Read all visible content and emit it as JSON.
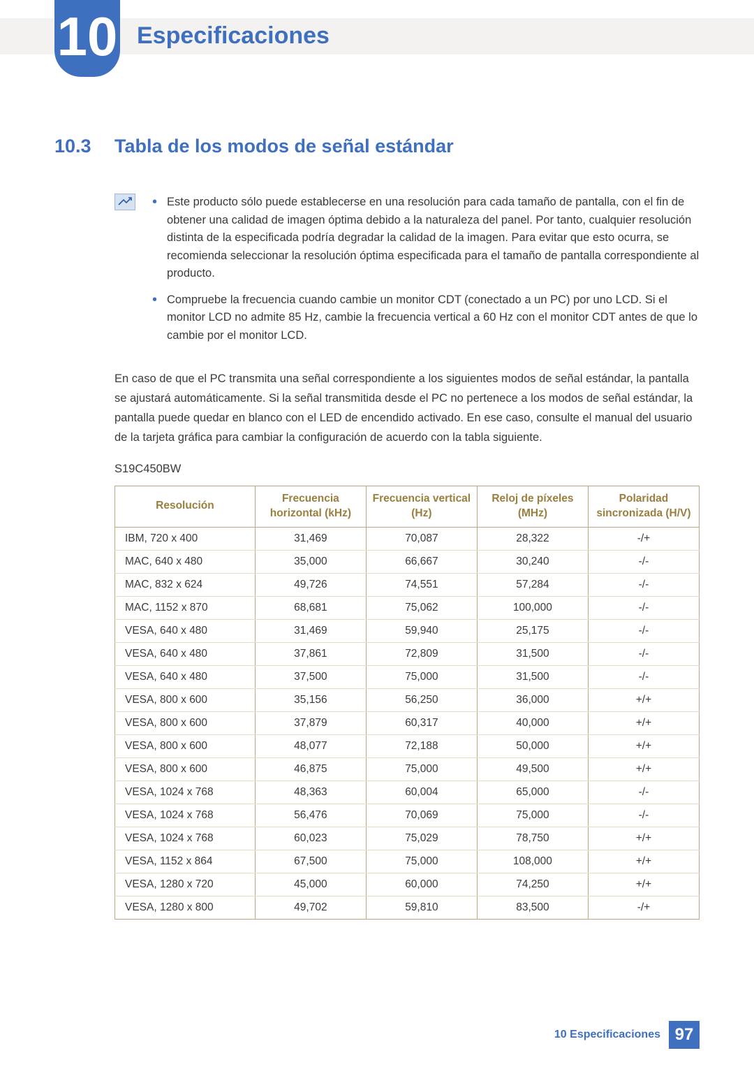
{
  "header": {
    "chapter_number": "10",
    "chapter_title": "Especificaciones"
  },
  "section": {
    "number": "10.3",
    "title": "Tabla de los modos de señal estándar"
  },
  "notes": [
    "Este producto sólo puede establecerse en una resolución para cada tamaño de pantalla, con el fin de obtener una calidad de imagen óptima debido a la naturaleza del panel. Por tanto, cualquier resolución distinta de la especificada podría degradar la calidad de la imagen. Para evitar que esto ocurra, se recomienda seleccionar la resolución óptima especificada para el tamaño de pantalla correspondiente al producto.",
    "Compruebe la frecuencia cuando cambie un monitor CDT (conectado a un PC) por uno LCD. Si el monitor LCD no admite 85 Hz, cambie la frecuencia vertical a 60 Hz con el monitor CDT antes de que lo cambie por el monitor LCD."
  ],
  "body_paragraph": "En caso de que el PC transmita una señal correspondiente a los siguientes modos de señal estándar, la pantalla se ajustará automáticamente. Si la señal transmitida desde el PC no pertenece a los modos de señal estándar, la pantalla puede quedar en blanco con el LED de encendido activado. En ese caso, consulte el manual del usuario de la tarjeta gráfica para cambiar la configuración de acuerdo con la tabla siguiente.",
  "model": "S19C450BW",
  "table": {
    "columns": [
      "Resolución",
      "Frecuencia horizontal (kHz)",
      "Frecuencia vertical (Hz)",
      "Reloj de píxeles (MHz)",
      "Polaridad sincronizada (H/V)"
    ],
    "column_widths_pct": [
      24,
      19,
      19,
      19,
      19
    ],
    "header_color": "#9a7f3f",
    "border_color": "#bca87a",
    "row_divider_color": "#e5dcc8",
    "rows": [
      [
        "IBM, 720 x 400",
        "31,469",
        "70,087",
        "28,322",
        "-/+"
      ],
      [
        "MAC, 640 x 480",
        "35,000",
        "66,667",
        "30,240",
        "-/-"
      ],
      [
        "MAC, 832 x 624",
        "49,726",
        "74,551",
        "57,284",
        "-/-"
      ],
      [
        "MAC, 1152 x 870",
        "68,681",
        "75,062",
        "100,000",
        "-/-"
      ],
      [
        "VESA, 640 x 480",
        "31,469",
        "59,940",
        "25,175",
        "-/-"
      ],
      [
        "VESA, 640 x 480",
        "37,861",
        "72,809",
        "31,500",
        "-/-"
      ],
      [
        "VESA, 640 x 480",
        "37,500",
        "75,000",
        "31,500",
        "-/-"
      ],
      [
        "VESA, 800 x 600",
        "35,156",
        "56,250",
        "36,000",
        "+/+"
      ],
      [
        "VESA, 800 x 600",
        "37,879",
        "60,317",
        "40,000",
        "+/+"
      ],
      [
        "VESA, 800 x 600",
        "48,077",
        "72,188",
        "50,000",
        "+/+"
      ],
      [
        "VESA, 800 x 600",
        "46,875",
        "75,000",
        "49,500",
        "+/+"
      ],
      [
        "VESA, 1024 x 768",
        "48,363",
        "60,004",
        "65,000",
        "-/-"
      ],
      [
        "VESA, 1024 x 768",
        "56,476",
        "70,069",
        "75,000",
        "-/-"
      ],
      [
        "VESA, 1024 x 768",
        "60,023",
        "75,029",
        "78,750",
        "+/+"
      ],
      [
        "VESA, 1152 x 864",
        "67,500",
        "75,000",
        "108,000",
        "+/+"
      ],
      [
        "VESA, 1280 x 720",
        "45,000",
        "60,000",
        "74,250",
        "+/+"
      ],
      [
        "VESA, 1280 x 800",
        "49,702",
        "59,810",
        "83,500",
        "-/+"
      ]
    ]
  },
  "footer": {
    "text": "10 Especificaciones",
    "page": "97"
  },
  "colors": {
    "accent_blue": "#3f70c0",
    "top_bar_bg": "#f4f2f0",
    "text": "#3b3b3b",
    "note_icon_bg": "#d6e2f2",
    "note_icon_border": "#9cb8dc"
  }
}
